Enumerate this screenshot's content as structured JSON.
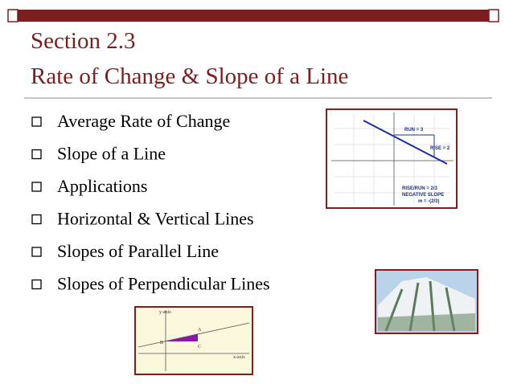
{
  "title": {
    "line1": "Section 2.3",
    "line2": "Rate of Change & Slope of a Line"
  },
  "bullets": [
    "Average Rate of Change",
    "Slope of a Line",
    "Applications",
    "Horizontal & Vertical Lines",
    "Slopes of Parallel Line",
    "Slopes of Perpendicular Lines"
  ],
  "slope_figure": {
    "run_label": "RUN = 3",
    "rise_label": "RISE = 2",
    "ratio_label": "RISE/RUN = 2/3",
    "kind_label": "NEGATIVE SLOPE",
    "m_label": "m = -(2/3)"
  },
  "triangle_figure": {
    "y_axis": "y-axis",
    "x_axis": "x-axis",
    "point_a": "A",
    "point_b": "B",
    "point_c": "C"
  }
}
